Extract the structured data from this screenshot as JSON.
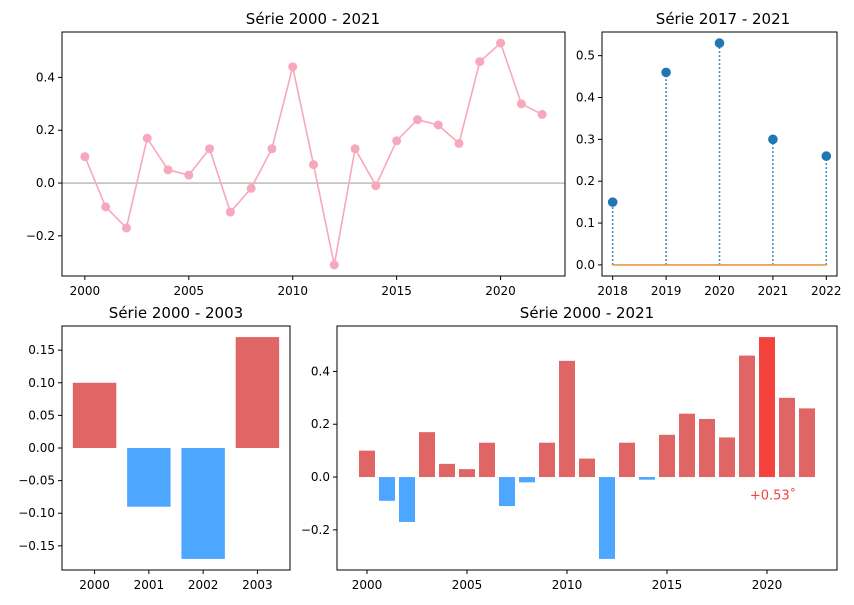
{
  "colors": {
    "line_series": "#f7a8bc",
    "zero_line": "#8c8c8c",
    "stem_marker": "#1f77b4",
    "stem_baseline": "#e69a45",
    "bar_positive": "#e06666",
    "bar_negative": "#4da6ff",
    "bar_highlight": "#f4433c",
    "annotation": "#f4433c"
  },
  "chart_data": [
    {
      "id": "line",
      "type": "line",
      "title": "Série 2000 - 2021",
      "x": [
        2000,
        2001,
        2002,
        2003,
        2004,
        2005,
        2006,
        2007,
        2008,
        2009,
        2010,
        2011,
        2012,
        2013,
        2014,
        2015,
        2016,
        2017,
        2018,
        2019,
        2020,
        2021,
        2022
      ],
      "y": [
        0.1,
        -0.09,
        -0.17,
        0.17,
        0.05,
        0.03,
        0.13,
        -0.11,
        -0.02,
        0.13,
        0.44,
        0.07,
        -0.31,
        0.13,
        -0.01,
        0.16,
        0.24,
        0.22,
        0.15,
        0.46,
        0.53,
        0.3,
        0.26
      ],
      "xlim": [
        1998.9,
        2023.1
      ],
      "ylim": [
        -0.352,
        0.572
      ],
      "xticks": [
        2000,
        2005,
        2010,
        2015,
        2020
      ],
      "yticks": [
        -0.2,
        0.0,
        0.2,
        0.4
      ],
      "ytick_labels": [
        "−0.2",
        "0.0",
        "0.2",
        "0.4"
      ],
      "hline": 0,
      "grid": false
    },
    {
      "id": "stem",
      "type": "scatter",
      "title": "Série 2017 - 2021",
      "x": [
        2018,
        2019,
        2020,
        2021,
        2022
      ],
      "y": [
        0.15,
        0.46,
        0.53,
        0.3,
        0.26
      ],
      "xlim": [
        2017.8,
        2022.2
      ],
      "ylim": [
        -0.0265,
        0.5565
      ],
      "xticks": [
        2018,
        2019,
        2020,
        2021,
        2022
      ],
      "yticks": [
        0.0,
        0.1,
        0.2,
        0.3,
        0.4,
        0.5
      ],
      "ytick_labels": [
        "0.0",
        "0.1",
        "0.2",
        "0.3",
        "0.4",
        "0.5"
      ],
      "baseline": 0,
      "grid": false
    },
    {
      "id": "bar_small",
      "type": "bar",
      "title": "Série 2000 - 2003",
      "categories": [
        "2000",
        "2001",
        "2002",
        "2003"
      ],
      "values": [
        0.1,
        -0.09,
        -0.17,
        0.17
      ],
      "ylim": [
        -0.187,
        0.187
      ],
      "yticks": [
        -0.15,
        -0.1,
        -0.05,
        0.0,
        0.05,
        0.1,
        0.15
      ],
      "ytick_labels": [
        "−0.15",
        "−0.10",
        "−0.05",
        "0.00",
        "0.05",
        "0.10",
        "0.15"
      ],
      "grid": false
    },
    {
      "id": "bar_big",
      "type": "bar",
      "title": "Série 2000 - 2021",
      "x": [
        2000,
        2001,
        2002,
        2003,
        2004,
        2005,
        2006,
        2007,
        2008,
        2009,
        2010,
        2011,
        2012,
        2013,
        2014,
        2015,
        2016,
        2017,
        2018,
        2019,
        2020,
        2021,
        2022
      ],
      "values": [
        0.1,
        -0.09,
        -0.17,
        0.17,
        0.05,
        0.03,
        0.13,
        -0.11,
        -0.02,
        0.13,
        0.44,
        0.07,
        -0.31,
        0.13,
        -0.01,
        0.16,
        0.24,
        0.22,
        0.15,
        0.46,
        0.53,
        0.3,
        0.26
      ],
      "highlight_x": 2020,
      "xlim": [
        1998.5,
        2023.5
      ],
      "ylim": [
        -0.352,
        0.572
      ],
      "xticks": [
        2000,
        2005,
        2010,
        2015,
        2020
      ],
      "yticks": [
        -0.2,
        0.0,
        0.2,
        0.4
      ],
      "ytick_labels": [
        "−0.2",
        "0.0",
        "0.2",
        "0.4"
      ],
      "annotation": "+0.53˚",
      "grid": false
    }
  ]
}
